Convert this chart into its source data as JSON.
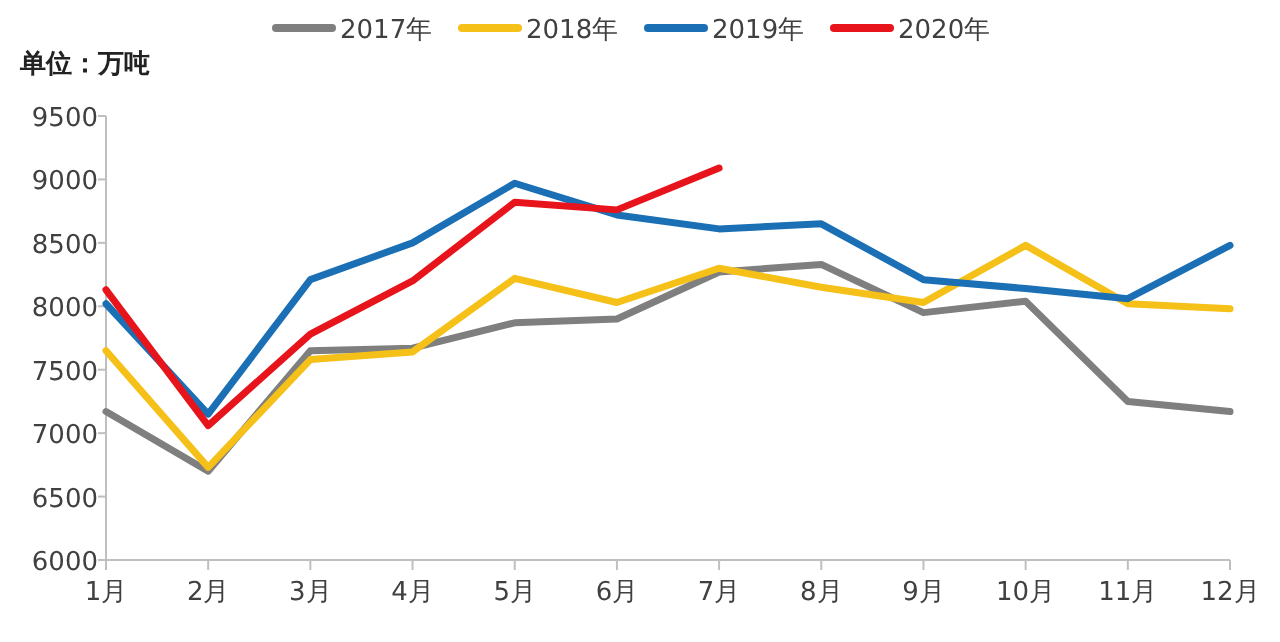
{
  "chart_data": {
    "type": "line",
    "ylabel": "单位：万吨",
    "categories": [
      "1月",
      "2月",
      "3月",
      "4月",
      "5月",
      "6月",
      "7月",
      "8月",
      "9月",
      "10月",
      "11月",
      "12月"
    ],
    "series": [
      {
        "name": "2017年",
        "color": "#7f7f7f",
        "values": [
          7170,
          6700,
          7650,
          7670,
          7870,
          7900,
          8270,
          8330,
          7950,
          8040,
          7250,
          7170
        ]
      },
      {
        "name": "2018年",
        "color": "#f5c018",
        "values": [
          7650,
          6730,
          7580,
          7640,
          8220,
          8030,
          8300,
          8150,
          8030,
          8480,
          8020,
          7980
        ]
      },
      {
        "name": "2019年",
        "color": "#1a6fb5",
        "values": [
          8020,
          7150,
          8210,
          8500,
          8970,
          8720,
          8610,
          8650,
          8210,
          8140,
          8060,
          8480
        ]
      },
      {
        "name": "2020年",
        "color": "#e8141b",
        "values": [
          8130,
          7060,
          7780,
          8200,
          8820,
          8760,
          9090,
          null,
          null,
          null,
          null,
          null
        ]
      }
    ],
    "ylim": [
      6000,
      9500
    ],
    "yticks": [
      6000,
      6500,
      7000,
      7500,
      8000,
      8500,
      9000,
      9500
    ],
    "legend": "top",
    "grid": false,
    "marker": "none",
    "line_style": "solid"
  }
}
